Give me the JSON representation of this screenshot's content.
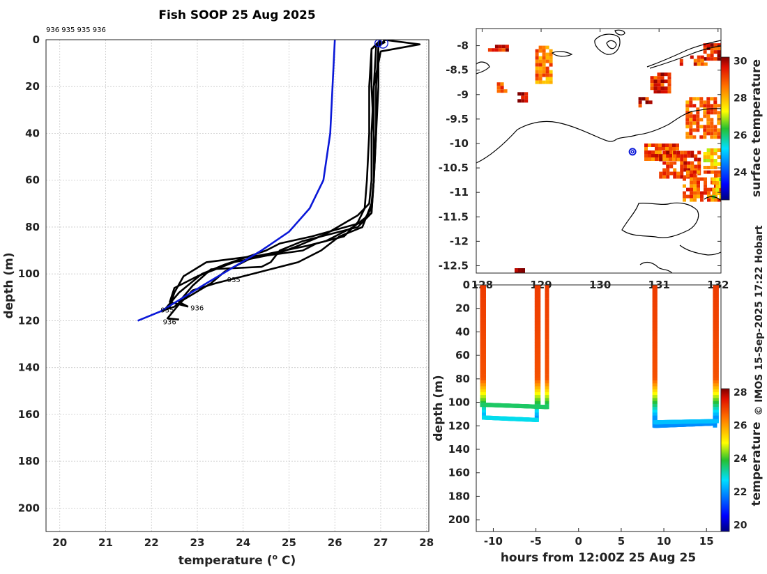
{
  "colors": {
    "mean_profile": "#0a18d8",
    "cast_profile": "#000000",
    "coast": "#000000",
    "ship_marker": "#0a18d8"
  },
  "chart_data": [
    {
      "id": "profile",
      "type": "line",
      "title": "Fish SOOP 25 Aug 2025",
      "top_annotation": "936 935 935 936",
      "xlabel": "temperature (",
      "xlabel_sup": "o",
      "xlabel_suffix": " C)",
      "ylabel": "depth (m)",
      "xlim": [
        19.7,
        28.05
      ],
      "ylim": [
        0,
        210
      ],
      "y_inverted": true,
      "xticks": [
        "20",
        "21",
        "22",
        "23",
        "24",
        "25",
        "26",
        "27",
        "28"
      ],
      "xtick_values": [
        20,
        21,
        22,
        23,
        24,
        25,
        26,
        27,
        28
      ],
      "yticks": [
        "0",
        "20",
        "40",
        "60",
        "80",
        "100",
        "120",
        "140",
        "160",
        "180",
        "200"
      ],
      "ytick_values": [
        0,
        20,
        40,
        60,
        80,
        100,
        120,
        140,
        160,
        180,
        200
      ],
      "annotations": [
        {
          "text": "935",
          "t": 23.65,
          "d": 103.5
        },
        {
          "text": "936",
          "t": 22.85,
          "d": 115.5
        },
        {
          "text": "935",
          "t": 22.2,
          "d": 116.5
        },
        {
          "text": "936",
          "t": 22.25,
          "d": 121.5
        }
      ],
      "series": [
        {
          "name": "mean",
          "color": "#0a18d8",
          "points": [
            [
              26.0,
              0
            ],
            [
              25.95,
              20
            ],
            [
              25.9,
              40
            ],
            [
              25.75,
              60
            ],
            [
              25.45,
              72
            ],
            [
              25.0,
              82
            ],
            [
              24.4,
              90
            ],
            [
              23.8,
              97
            ],
            [
              23.2,
              104
            ],
            [
              22.7,
              110
            ],
            [
              22.2,
              116
            ],
            [
              21.7,
              120
            ]
          ]
        },
        {
          "name": "cast-1",
          "color": "#000000",
          "points": [
            [
              27.05,
              0
            ],
            [
              27.85,
              2
            ],
            [
              27.0,
              5
            ],
            [
              26.85,
              20
            ],
            [
              26.85,
              40
            ],
            [
              26.85,
              60
            ],
            [
              26.8,
              72
            ],
            [
              26.6,
              78
            ],
            [
              25.5,
              84
            ],
            [
              24.8,
              87
            ],
            [
              24.5,
              90
            ],
            [
              23.6,
              96
            ],
            [
              23.1,
              100
            ],
            [
              22.6,
              108
            ],
            [
              22.3,
              115
            ]
          ]
        },
        {
          "name": "cast-2",
          "color": "#000000",
          "points": [
            [
              27.0,
              0
            ],
            [
              26.95,
              3
            ],
            [
              26.95,
              20
            ],
            [
              26.9,
              40
            ],
            [
              26.85,
              60
            ],
            [
              26.8,
              74
            ],
            [
              26.5,
              80
            ],
            [
              25.3,
              86
            ],
            [
              24.8,
              90
            ],
            [
              24.6,
              95
            ],
            [
              24.4,
              97
            ],
            [
              23.3,
              98
            ],
            [
              22.9,
              105
            ],
            [
              22.6,
              112
            ],
            [
              22.8,
              114
            ]
          ]
        },
        {
          "name": "cast-3",
          "color": "#000000",
          "points": [
            [
              27.1,
              1
            ],
            [
              26.9,
              3
            ],
            [
              26.85,
              20
            ],
            [
              26.8,
              40
            ],
            [
              26.8,
              60
            ],
            [
              26.75,
              70
            ],
            [
              26.5,
              75
            ],
            [
              25.8,
              83
            ],
            [
              25.2,
              88
            ],
            [
              24.8,
              91
            ],
            [
              23.8,
              95
            ],
            [
              23.0,
              101
            ],
            [
              22.5,
              106
            ],
            [
              22.4,
              112
            ],
            [
              22.8,
              114
            ]
          ]
        },
        {
          "name": "cast-4",
          "color": "#000000",
          "points": [
            [
              27.0,
              1
            ],
            [
              26.8,
              4
            ],
            [
              26.75,
              20
            ],
            [
              26.75,
              40
            ],
            [
              26.7,
              60
            ],
            [
              26.65,
              72
            ],
            [
              26.5,
              78
            ],
            [
              26.2,
              84
            ],
            [
              25.6,
              87
            ],
            [
              25.3,
              90
            ],
            [
              24.2,
              93
            ],
            [
              23.6,
              99
            ],
            [
              23.3,
              104
            ],
            [
              22.7,
              111
            ],
            [
              22.5,
              114
            ],
            [
              22.2,
              116
            ]
          ]
        },
        {
          "name": "cast-5",
          "color": "#000000",
          "points": [
            [
              27.1,
              0
            ],
            [
              26.95,
              3
            ],
            [
              26.9,
              20
            ],
            [
              26.9,
              40
            ],
            [
              26.85,
              60
            ],
            [
              26.8,
              74
            ],
            [
              26.4,
              80
            ],
            [
              25.8,
              86
            ],
            [
              25.4,
              88
            ],
            [
              24.4,
              92
            ],
            [
              23.2,
              95
            ],
            [
              22.7,
              101
            ],
            [
              22.5,
              108
            ],
            [
              22.4,
              114
            ],
            [
              22.2,
              116
            ]
          ]
        },
        {
          "name": "cast-6",
          "color": "#000000",
          "points": [
            [
              27.0,
              0
            ],
            [
              26.8,
              4
            ],
            [
              26.8,
              20
            ],
            [
              26.85,
              40
            ],
            [
              26.85,
              60
            ],
            [
              26.8,
              70
            ],
            [
              26.6,
              80
            ],
            [
              26.1,
              84
            ],
            [
              25.7,
              90
            ],
            [
              25.2,
              95
            ],
            [
              24.2,
              100
            ],
            [
              23.4,
              104
            ],
            [
              22.9,
              107
            ],
            [
              22.6,
              113
            ],
            [
              22.35,
              119
            ],
            [
              22.6,
              119.5
            ]
          ]
        }
      ]
    },
    {
      "id": "map",
      "type": "heatmap",
      "xlim": [
        127.9,
        132.05
      ],
      "ylim": [
        -12.65,
        -7.65
      ],
      "yticks": [
        "-8",
        "-8.5",
        "-9",
        "-9.5",
        "-10",
        "-10.5",
        "-11",
        "-11.5",
        "-12",
        "-12.5"
      ],
      "ytick_values": [
        -8,
        -8.5,
        -9,
        -9.5,
        -10,
        -10.5,
        -11,
        -11.5,
        -12,
        -12.5
      ],
      "xticks": [
        "128",
        "129",
        "130",
        "131",
        "132"
      ],
      "xtick_values": [
        128,
        129,
        130,
        131,
        132
      ],
      "colorbar_label": "surface temperature",
      "colorbar_range": [
        22.5,
        30.2
      ],
      "colorbar_ticks": [
        "24",
        "26",
        "28",
        "30"
      ],
      "colorbar_tick_values": [
        24,
        26,
        28,
        30
      ],
      "ship_position": {
        "lon": 130.55,
        "lat": -10.17
      },
      "sst_patches": [
        {
          "lon0": 128.1,
          "lon1": 128.45,
          "lat0": -8.12,
          "lat1": -7.98,
          "temp": 29.6
        },
        {
          "lon0": 128.9,
          "lon1": 129.15,
          "lat0": -8.75,
          "lat1": -8.0,
          "temp": 28.6
        },
        {
          "lon0": 128.25,
          "lon1": 128.4,
          "lat0": -8.95,
          "lat1": -8.75,
          "temp": 29.2
        },
        {
          "lon0": 128.6,
          "lon1": 128.75,
          "lat0": -9.15,
          "lat1": -8.95,
          "temp": 29.6
        },
        {
          "lon0": 131.75,
          "lon1": 132.0,
          "lat0": -8.3,
          "lat1": -7.95,
          "temp": 29.4
        },
        {
          "lon0": 131.35,
          "lon1": 131.8,
          "lat0": -8.35,
          "lat1": -8.2,
          "temp": 29.0
        },
        {
          "lon0": 130.85,
          "lon1": 131.15,
          "lat0": -8.95,
          "lat1": -8.55,
          "temp": 29.3
        },
        {
          "lon0": 130.65,
          "lon1": 130.85,
          "lat0": -9.2,
          "lat1": -9.05,
          "temp": 29.6
        },
        {
          "lon0": 131.45,
          "lon1": 132.0,
          "lat0": -9.85,
          "lat1": -9.05,
          "temp": 28.8
        },
        {
          "lon0": 130.75,
          "lon1": 131.3,
          "lat0": -10.35,
          "lat1": -10.0,
          "temp": 29.0
        },
        {
          "lon0": 131.0,
          "lon1": 131.7,
          "lat0": -10.65,
          "lat1": -10.15,
          "temp": 29.2
        },
        {
          "lon0": 131.4,
          "lon1": 132.05,
          "lat0": -11.15,
          "lat1": -10.55,
          "temp": 28.9
        },
        {
          "lon0": 131.75,
          "lon1": 132.05,
          "lat0": -10.5,
          "lat1": -10.1,
          "temp": 27.7
        },
        {
          "lon0": 131.9,
          "lon1": 132.05,
          "lat0": -11.1,
          "lat1": -10.7,
          "temp": 27.4
        },
        {
          "lon0": 128.55,
          "lon1": 128.7,
          "lat0": -12.65,
          "lat1": -12.55,
          "temp": 29.8
        }
      ]
    },
    {
      "id": "section",
      "type": "scatter",
      "xlabel": "hours from 12:00Z 25 Aug 25",
      "ylabel": "depth (m)",
      "xlim": [
        -12,
        16.7
      ],
      "ylim": [
        0,
        210
      ],
      "y_inverted": true,
      "xticks": [
        "-10",
        "-5",
        "0",
        "5",
        "10",
        "15"
      ],
      "xtick_values": [
        -10,
        -5,
        0,
        5,
        10,
        15
      ],
      "yticks": [
        "0",
        "20",
        "40",
        "60",
        "80",
        "100",
        "120",
        "140",
        "160",
        "180",
        "200"
      ],
      "ytick_values": [
        0,
        20,
        40,
        60,
        80,
        100,
        120,
        140,
        160,
        180,
        200
      ],
      "colorbar_label": "temperature",
      "colorbar_range": [
        19.6,
        28.2
      ],
      "colorbar_ticks": [
        "20",
        "22",
        "24",
        "26",
        "28"
      ],
      "colorbar_tick_values": [
        20,
        22,
        24,
        26,
        28
      ],
      "casts": [
        {
          "x": -11.3,
          "max_depth": 103
        },
        {
          "x": -11.1,
          "max_depth": 112
        },
        {
          "x": -4.9,
          "max_depth": 115
        },
        {
          "x": -4.7,
          "max_depth": 103
        },
        {
          "x": -3.7,
          "max_depth": 104
        },
        {
          "x": 8.9,
          "max_depth": 120
        },
        {
          "x": 9.0,
          "max_depth": 117
        },
        {
          "x": 16.0,
          "max_depth": 120
        },
        {
          "x": 16.2,
          "max_depth": 116
        }
      ],
      "bottom_tracks": [
        {
          "x0": -11.3,
          "x1": -3.7,
          "depth0": 102,
          "depth1": 104,
          "temp": 23.6
        },
        {
          "x0": -11.1,
          "x1": -4.9,
          "depth0": 113,
          "depth1": 115,
          "temp": 22.8
        },
        {
          "x0": 9.0,
          "x1": 16.0,
          "depth0": 120,
          "depth1": 118,
          "temp": 21.9
        },
        {
          "x0": 9.0,
          "x1": 16.2,
          "depth0": 117,
          "depth1": 116,
          "temp": 22.4
        }
      ]
    }
  ],
  "watermark": "© IMOS 15-Sep-2025 17:22 Hobart"
}
